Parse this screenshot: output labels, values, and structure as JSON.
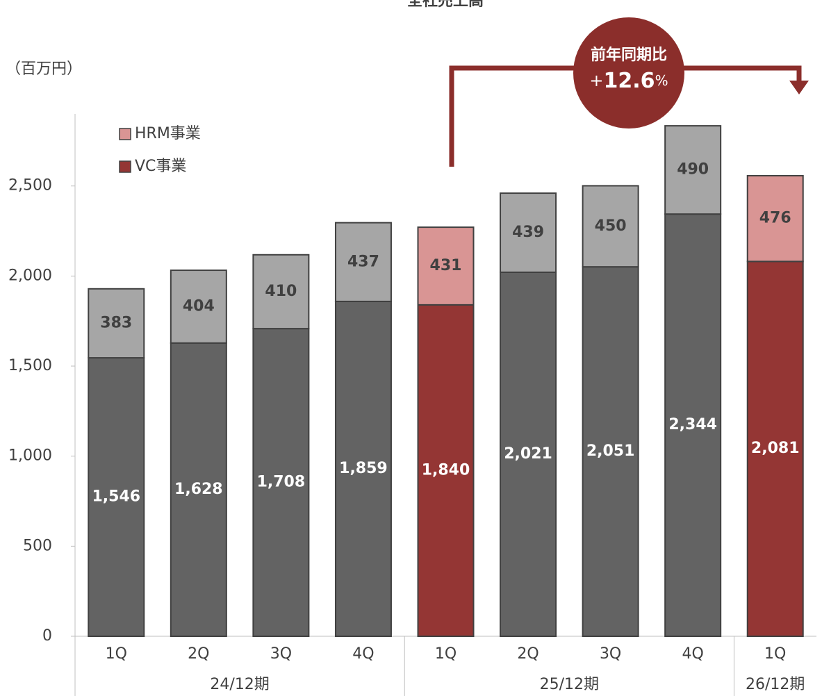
{
  "chart_data": {
    "type": "stacked_bar",
    "title": "全社売上高",
    "unit_label": "（百万円）",
    "categories": [
      "1Q",
      "2Q",
      "3Q",
      "4Q",
      "1Q",
      "2Q",
      "3Q",
      "4Q",
      "1Q"
    ],
    "groups": [
      {
        "label": "24/12期",
        "size": 4
      },
      {
        "label": "25/12期",
        "size": 4
      },
      {
        "label": "26/12期",
        "size": 1
      }
    ],
    "series": [
      {
        "name": "VC事業",
        "color": "#943634",
        "point_colors": [
          "#636363",
          "#636363",
          "#636363",
          "#636363",
          "#943634",
          "#636363",
          "#636363",
          "#636363",
          "#943634"
        ],
        "values": [
          1546,
          1628,
          1708,
          1859,
          1840,
          2021,
          2051,
          2344,
          2081
        ],
        "value_labels": [
          "1,546",
          "1,628",
          "1,708",
          "1,859",
          "1,840",
          "2,021",
          "2,051",
          "2,344",
          "2,081"
        ]
      },
      {
        "name": "HRM事業",
        "color": "#d99594",
        "point_colors": [
          "#a6a6a6",
          "#a6a6a6",
          "#a6a6a6",
          "#a6a6a6",
          "#d99594",
          "#a6a6a6",
          "#a6a6a6",
          "#a6a6a6",
          "#d99594"
        ],
        "values": [
          383,
          404,
          410,
          437,
          431,
          439,
          450,
          490,
          476
        ]
      }
    ],
    "ylim": [
      0,
      2900
    ],
    "yticks": [
      0,
      500,
      {
        "value": 1000,
        "label": "1,000"
      },
      {
        "value": 1500,
        "label": "1,500"
      },
      {
        "value": 2000,
        "label": "2,000"
      },
      {
        "value": 2500,
        "label": "2,500"
      }
    ],
    "annotation": {
      "title": "前年同期比",
      "sign": "+",
      "value": "12.6",
      "unit": "%"
    }
  }
}
